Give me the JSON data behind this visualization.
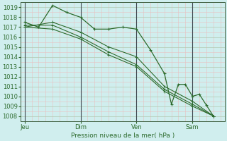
{
  "xlabel": "Pression niveau de la mer( hPa )",
  "bg_color": "#d0eeee",
  "grid_minor_color": "#e8c0c0",
  "grid_major_color": "#b0c8b0",
  "line_color": "#2d6b2d",
  "vline_color": "#404850",
  "ylim": [
    1007.5,
    1019.5
  ],
  "yticks": [
    1008,
    1009,
    1010,
    1011,
    1012,
    1013,
    1014,
    1015,
    1016,
    1017,
    1018,
    1019
  ],
  "day_positions": [
    0,
    4,
    8,
    12
  ],
  "day_labels": [
    "Jeu",
    "Dim",
    "Ven",
    "Sam"
  ],
  "xlim": [
    -0.3,
    14.3
  ],
  "series1_x": [
    0,
    1,
    2,
    3,
    4,
    5,
    6,
    7,
    8,
    9,
    10,
    10.5,
    11,
    11.5,
    12,
    12.5,
    13,
    13.5
  ],
  "series1_y": [
    1017.5,
    1017.0,
    1019.2,
    1018.5,
    1018.0,
    1016.8,
    1016.8,
    1017.0,
    1016.8,
    1014.7,
    1012.3,
    1009.2,
    1011.2,
    1011.2,
    1010.0,
    1010.2,
    1009.1,
    1008.0
  ],
  "series2_x": [
    0,
    2,
    4,
    6,
    8,
    10,
    12,
    13.5
  ],
  "series2_y": [
    1017.0,
    1017.5,
    1016.5,
    1015.0,
    1014.0,
    1011.0,
    1009.5,
    1008.0
  ],
  "series3_x": [
    0,
    2,
    4,
    6,
    8,
    10,
    12,
    13.5
  ],
  "series3_y": [
    1017.0,
    1016.8,
    1015.8,
    1014.2,
    1013.0,
    1010.5,
    1009.0,
    1008.0
  ],
  "series4_x": [
    0,
    2,
    4,
    6,
    8,
    10,
    12,
    13.5
  ],
  "series4_y": [
    1017.2,
    1017.2,
    1016.0,
    1014.5,
    1013.2,
    1010.7,
    1009.2,
    1008.0
  ]
}
